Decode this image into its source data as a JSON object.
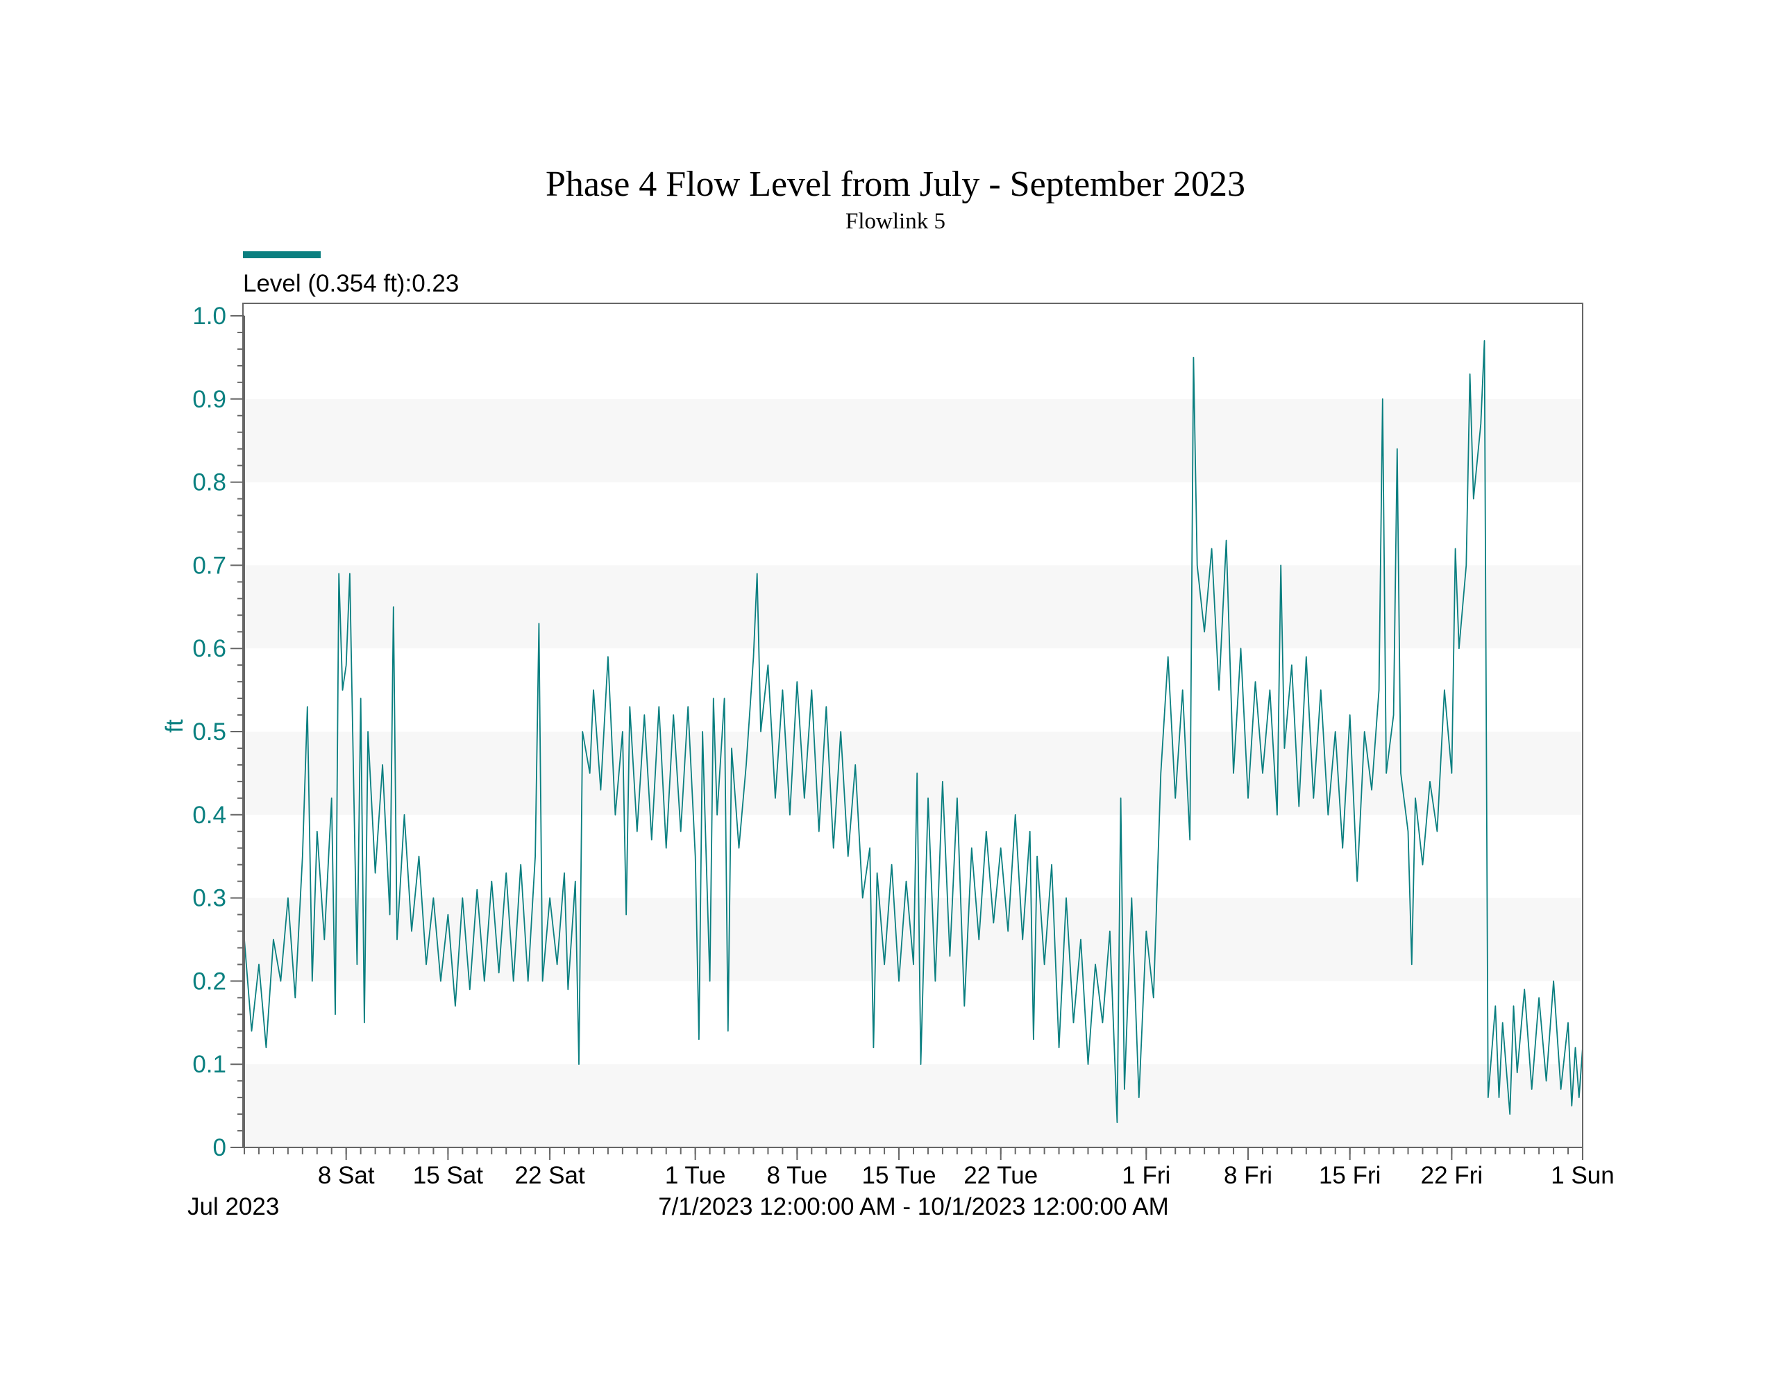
{
  "chart_data": {
    "type": "line",
    "title": "Phase 4 Flow Level from July - September 2023",
    "subtitle": "Flowlink 5",
    "legend": {
      "label": "Level (0.354 ft):0.23",
      "color": "#0a7f80",
      "placement": "top-left"
    },
    "ylabel": "ft",
    "ylim": [
      0,
      1.0
    ],
    "yticks": [
      "0",
      "0.1",
      "0.2",
      "0.3",
      "0.4",
      "0.5",
      "0.6",
      "0.7",
      "0.8",
      "0.9",
      "1.0"
    ],
    "xlim": [
      "2023-07-01",
      "2023-10-01"
    ],
    "xticks": [
      {
        "date": "2023-07-08",
        "label": "8 Sat"
      },
      {
        "date": "2023-07-15",
        "label": "15 Sat"
      },
      {
        "date": "2023-07-22",
        "label": "22 Sat"
      },
      {
        "date": "2023-08-01",
        "label": "1 Tue"
      },
      {
        "date": "2023-08-08",
        "label": "8 Tue"
      },
      {
        "date": "2023-08-15",
        "label": "15 Tue"
      },
      {
        "date": "2023-08-22",
        "label": "22 Tue"
      },
      {
        "date": "2023-09-01",
        "label": "1 Fri"
      },
      {
        "date": "2023-09-08",
        "label": "8 Fri"
      },
      {
        "date": "2023-09-15",
        "label": "15 Fri"
      },
      {
        "date": "2023-09-22",
        "label": "22 Fri"
      },
      {
        "date": "2023-10-01",
        "label": "1 Sun"
      }
    ],
    "x_month_label": "Jul 2023",
    "x_range_label": "7/1/2023 12:00:00 AM - 10/1/2023 12:00:00 AM",
    "grid": "alternating horizontal bands",
    "band_color": "#f7f7f7",
    "series": [
      {
        "name": "Level",
        "color": "#0a7f80",
        "points": [
          [
            "2023-07-01",
            0.25
          ],
          [
            "2023-07-01 12:00",
            0.14
          ],
          [
            "2023-07-02",
            0.22
          ],
          [
            "2023-07-02 12:00",
            0.12
          ],
          [
            "2023-07-03",
            0.25
          ],
          [
            "2023-07-03 12:00",
            0.2
          ],
          [
            "2023-07-04",
            0.3
          ],
          [
            "2023-07-04 12:00",
            0.18
          ],
          [
            "2023-07-05",
            0.35
          ],
          [
            "2023-07-05 08:00",
            0.53
          ],
          [
            "2023-07-05 16:00",
            0.2
          ],
          [
            "2023-07-06",
            0.38
          ],
          [
            "2023-07-06 12:00",
            0.25
          ],
          [
            "2023-07-07",
            0.42
          ],
          [
            "2023-07-07 06:00",
            0.16
          ],
          [
            "2023-07-07 12:00",
            0.69
          ],
          [
            "2023-07-07 18:00",
            0.55
          ],
          [
            "2023-07-08",
            0.58
          ],
          [
            "2023-07-08 06:00",
            0.69
          ],
          [
            "2023-07-08 12:00",
            0.45
          ],
          [
            "2023-07-08 18:00",
            0.22
          ],
          [
            "2023-07-09",
            0.54
          ],
          [
            "2023-07-09 06:00",
            0.15
          ],
          [
            "2023-07-09 12:00",
            0.5
          ],
          [
            "2023-07-10",
            0.33
          ],
          [
            "2023-07-10 12:00",
            0.46
          ],
          [
            "2023-07-11",
            0.28
          ],
          [
            "2023-07-11 06:00",
            0.65
          ],
          [
            "2023-07-11 12:00",
            0.25
          ],
          [
            "2023-07-12",
            0.4
          ],
          [
            "2023-07-12 12:00",
            0.26
          ],
          [
            "2023-07-13",
            0.35
          ],
          [
            "2023-07-13 12:00",
            0.22
          ],
          [
            "2023-07-14",
            0.3
          ],
          [
            "2023-07-14 12:00",
            0.2
          ],
          [
            "2023-07-15",
            0.28
          ],
          [
            "2023-07-15 12:00",
            0.17
          ],
          [
            "2023-07-16",
            0.3
          ],
          [
            "2023-07-16 12:00",
            0.19
          ],
          [
            "2023-07-17",
            0.31
          ],
          [
            "2023-07-17 12:00",
            0.2
          ],
          [
            "2023-07-18",
            0.32
          ],
          [
            "2023-07-18 12:00",
            0.21
          ],
          [
            "2023-07-19",
            0.33
          ],
          [
            "2023-07-19 12:00",
            0.2
          ],
          [
            "2023-07-20",
            0.34
          ],
          [
            "2023-07-20 12:00",
            0.2
          ],
          [
            "2023-07-21",
            0.35
          ],
          [
            "2023-07-21 06:00",
            0.63
          ],
          [
            "2023-07-21 12:00",
            0.2
          ],
          [
            "2023-07-22",
            0.3
          ],
          [
            "2023-07-22 12:00",
            0.22
          ],
          [
            "2023-07-23",
            0.33
          ],
          [
            "2023-07-23 06:00",
            0.19
          ],
          [
            "2023-07-23 18:00",
            0.32
          ],
          [
            "2023-07-24",
            0.1
          ],
          [
            "2023-07-24 06:00",
            0.5
          ],
          [
            "2023-07-24 18:00",
            0.45
          ],
          [
            "2023-07-25",
            0.55
          ],
          [
            "2023-07-25 12:00",
            0.43
          ],
          [
            "2023-07-26",
            0.59
          ],
          [
            "2023-07-26 12:00",
            0.4
          ],
          [
            "2023-07-27",
            0.5
          ],
          [
            "2023-07-27 06:00",
            0.28
          ],
          [
            "2023-07-27 12:00",
            0.53
          ],
          [
            "2023-07-28",
            0.38
          ],
          [
            "2023-07-28 12:00",
            0.52
          ],
          [
            "2023-07-29",
            0.37
          ],
          [
            "2023-07-29 12:00",
            0.53
          ],
          [
            "2023-07-30",
            0.36
          ],
          [
            "2023-07-30 12:00",
            0.52
          ],
          [
            "2023-07-31",
            0.38
          ],
          [
            "2023-07-31 12:00",
            0.53
          ],
          [
            "2023-08-01",
            0.35
          ],
          [
            "2023-08-01 06:00",
            0.13
          ],
          [
            "2023-08-01 12:00",
            0.5
          ],
          [
            "2023-08-02",
            0.2
          ],
          [
            "2023-08-02 06:00",
            0.54
          ],
          [
            "2023-08-02 12:00",
            0.4
          ],
          [
            "2023-08-03",
            0.54
          ],
          [
            "2023-08-03 06:00",
            0.14
          ],
          [
            "2023-08-03 12:00",
            0.48
          ],
          [
            "2023-08-04",
            0.36
          ],
          [
            "2023-08-04 12:00",
            0.46
          ],
          [
            "2023-08-05",
            0.59
          ],
          [
            "2023-08-05 06:00",
            0.69
          ],
          [
            "2023-08-05 12:00",
            0.5
          ],
          [
            "2023-08-06",
            0.58
          ],
          [
            "2023-08-06 12:00",
            0.42
          ],
          [
            "2023-08-07",
            0.55
          ],
          [
            "2023-08-07 12:00",
            0.4
          ],
          [
            "2023-08-08",
            0.56
          ],
          [
            "2023-08-08 12:00",
            0.42
          ],
          [
            "2023-08-09",
            0.55
          ],
          [
            "2023-08-09 12:00",
            0.38
          ],
          [
            "2023-08-10",
            0.53
          ],
          [
            "2023-08-10 12:00",
            0.36
          ],
          [
            "2023-08-11",
            0.5
          ],
          [
            "2023-08-11 12:00",
            0.35
          ],
          [
            "2023-08-12",
            0.46
          ],
          [
            "2023-08-12 12:00",
            0.3
          ],
          [
            "2023-08-13",
            0.36
          ],
          [
            "2023-08-13 06:00",
            0.12
          ],
          [
            "2023-08-13 12:00",
            0.33
          ],
          [
            "2023-08-14",
            0.22
          ],
          [
            "2023-08-14 12:00",
            0.34
          ],
          [
            "2023-08-15",
            0.2
          ],
          [
            "2023-08-15 12:00",
            0.32
          ],
          [
            "2023-08-16",
            0.22
          ],
          [
            "2023-08-16 06:00",
            0.45
          ],
          [
            "2023-08-16 12:00",
            0.1
          ],
          [
            "2023-08-17",
            0.42
          ],
          [
            "2023-08-17 12:00",
            0.2
          ],
          [
            "2023-08-18",
            0.44
          ],
          [
            "2023-08-18 12:00",
            0.23
          ],
          [
            "2023-08-19",
            0.42
          ],
          [
            "2023-08-19 12:00",
            0.17
          ],
          [
            "2023-08-20",
            0.36
          ],
          [
            "2023-08-20 12:00",
            0.25
          ],
          [
            "2023-08-21",
            0.38
          ],
          [
            "2023-08-21 12:00",
            0.27
          ],
          [
            "2023-08-22",
            0.36
          ],
          [
            "2023-08-22 12:00",
            0.26
          ],
          [
            "2023-08-23",
            0.4
          ],
          [
            "2023-08-23 12:00",
            0.25
          ],
          [
            "2023-08-24",
            0.38
          ],
          [
            "2023-08-24 06:00",
            0.13
          ],
          [
            "2023-08-24 12:00",
            0.35
          ],
          [
            "2023-08-25",
            0.22
          ],
          [
            "2023-08-25 12:00",
            0.34
          ],
          [
            "2023-08-26",
            0.12
          ],
          [
            "2023-08-26 12:00",
            0.3
          ],
          [
            "2023-08-27",
            0.15
          ],
          [
            "2023-08-27 12:00",
            0.25
          ],
          [
            "2023-08-28",
            0.1
          ],
          [
            "2023-08-28 12:00",
            0.22
          ],
          [
            "2023-08-29",
            0.15
          ],
          [
            "2023-08-29 12:00",
            0.26
          ],
          [
            "2023-08-30",
            0.03
          ],
          [
            "2023-08-30 06:00",
            0.42
          ],
          [
            "2023-08-30 12:00",
            0.07
          ],
          [
            "2023-08-31",
            0.3
          ],
          [
            "2023-08-31 12:00",
            0.06
          ],
          [
            "2023-09-01",
            0.26
          ],
          [
            "2023-09-01 12:00",
            0.18
          ],
          [
            "2023-09-02",
            0.45
          ],
          [
            "2023-09-02 12:00",
            0.59
          ],
          [
            "2023-09-03",
            0.42
          ],
          [
            "2023-09-03 12:00",
            0.55
          ],
          [
            "2023-09-04",
            0.37
          ],
          [
            "2023-09-04 06:00",
            0.95
          ],
          [
            "2023-09-04 12:00",
            0.7
          ],
          [
            "2023-09-05",
            0.62
          ],
          [
            "2023-09-05 12:00",
            0.72
          ],
          [
            "2023-09-06",
            0.55
          ],
          [
            "2023-09-06 12:00",
            0.73
          ],
          [
            "2023-09-07",
            0.45
          ],
          [
            "2023-09-07 12:00",
            0.6
          ],
          [
            "2023-09-08",
            0.42
          ],
          [
            "2023-09-08 12:00",
            0.56
          ],
          [
            "2023-09-09",
            0.45
          ],
          [
            "2023-09-09 12:00",
            0.55
          ],
          [
            "2023-09-10",
            0.4
          ],
          [
            "2023-09-10 06:00",
            0.7
          ],
          [
            "2023-09-10 12:00",
            0.48
          ],
          [
            "2023-09-11",
            0.58
          ],
          [
            "2023-09-11 12:00",
            0.41
          ],
          [
            "2023-09-12",
            0.59
          ],
          [
            "2023-09-12 12:00",
            0.42
          ],
          [
            "2023-09-13",
            0.55
          ],
          [
            "2023-09-13 12:00",
            0.4
          ],
          [
            "2023-09-14",
            0.5
          ],
          [
            "2023-09-14 12:00",
            0.36
          ],
          [
            "2023-09-15",
            0.52
          ],
          [
            "2023-09-15 12:00",
            0.32
          ],
          [
            "2023-09-16",
            0.5
          ],
          [
            "2023-09-16 12:00",
            0.43
          ],
          [
            "2023-09-17",
            0.55
          ],
          [
            "2023-09-17 06:00",
            0.9
          ],
          [
            "2023-09-17 12:00",
            0.45
          ],
          [
            "2023-09-18",
            0.52
          ],
          [
            "2023-09-18 06:00",
            0.84
          ],
          [
            "2023-09-18 12:00",
            0.45
          ],
          [
            "2023-09-19",
            0.38
          ],
          [
            "2023-09-19 06:00",
            0.22
          ],
          [
            "2023-09-19 12:00",
            0.42
          ],
          [
            "2023-09-20",
            0.34
          ],
          [
            "2023-09-20 12:00",
            0.44
          ],
          [
            "2023-09-21",
            0.38
          ],
          [
            "2023-09-21 12:00",
            0.55
          ],
          [
            "2023-09-22",
            0.45
          ],
          [
            "2023-09-22 06:00",
            0.72
          ],
          [
            "2023-09-22 12:00",
            0.6
          ],
          [
            "2023-09-23",
            0.7
          ],
          [
            "2023-09-23 06:00",
            0.93
          ],
          [
            "2023-09-23 12:00",
            0.78
          ],
          [
            "2023-09-24",
            0.87
          ],
          [
            "2023-09-24 06:00",
            0.97
          ],
          [
            "2023-09-24 12:00",
            0.06
          ],
          [
            "2023-09-25",
            0.17
          ],
          [
            "2023-09-25 06:00",
            0.06
          ],
          [
            "2023-09-25 12:00",
            0.15
          ],
          [
            "2023-09-26",
            0.04
          ],
          [
            "2023-09-26 06:00",
            0.17
          ],
          [
            "2023-09-26 12:00",
            0.09
          ],
          [
            "2023-09-27",
            0.19
          ],
          [
            "2023-09-27 12:00",
            0.07
          ],
          [
            "2023-09-28",
            0.18
          ],
          [
            "2023-09-28 12:00",
            0.08
          ],
          [
            "2023-09-29",
            0.2
          ],
          [
            "2023-09-29 12:00",
            0.07
          ],
          [
            "2023-09-30",
            0.15
          ],
          [
            "2023-09-30 06:00",
            0.05
          ],
          [
            "2023-09-30 12:00",
            0.12
          ],
          [
            "2023-09-30 18:00",
            0.06
          ],
          [
            "2023-10-01",
            0.12
          ]
        ]
      }
    ]
  }
}
